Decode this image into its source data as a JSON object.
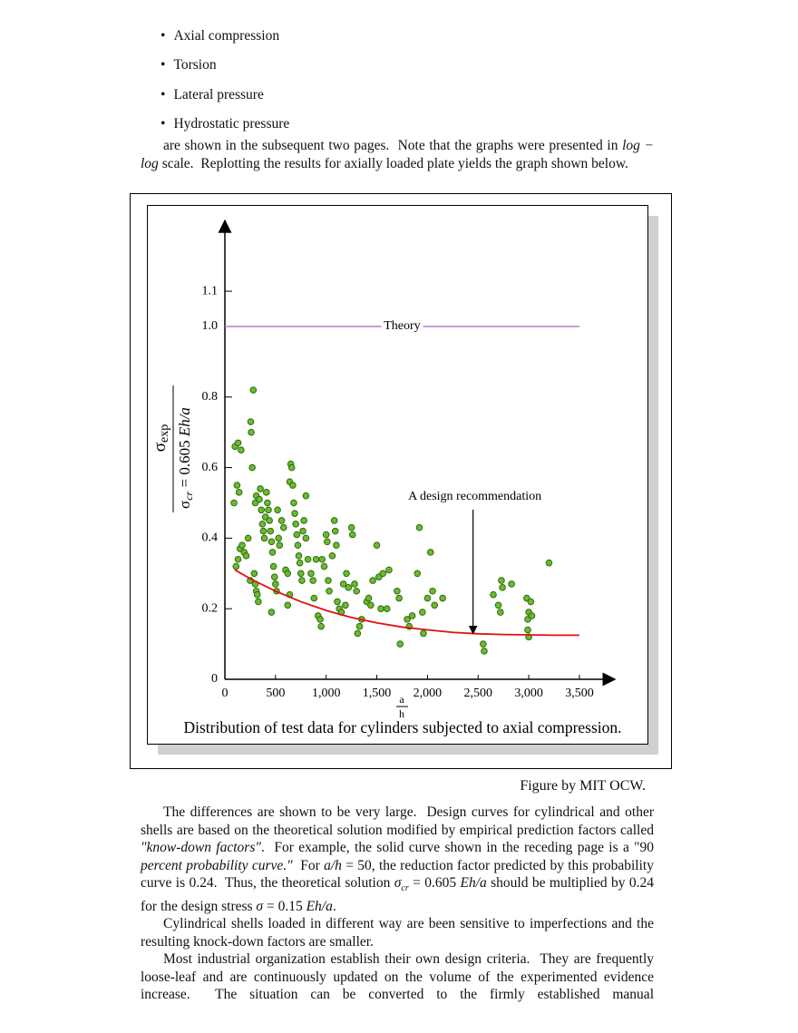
{
  "bullets": [
    "Axial compression",
    "Torsion",
    "Lateral pressure",
    "Hydrostatic pressure"
  ],
  "intro": [
    "are shown in the subsequent two pages.  Note that the graphs were presented in ",
    {
      "em": "log − log"
    },
    " scale.  Replotting the results for axially loaded plate yields the graph shown below."
  ],
  "chart_data": {
    "type": "scatter",
    "caption": "Distribution of test data for cylinders subjected to axial compression.",
    "credit": "Figure by MIT OCW.",
    "x_label": {
      "numerator": "a",
      "denominator": "h"
    },
    "y_label": {
      "numerator": {
        "symbol": "σ",
        "sub": "exp"
      },
      "denominator": {
        "symbol": "σ",
        "sub": "cr",
        "rest": " = 0.605 ",
        "em": "Eh/a"
      }
    },
    "xlim": [
      0,
      3850
    ],
    "ylim": [
      0,
      1.3
    ],
    "xticks": [
      0,
      500,
      {
        "value": 1000,
        "label": "1,000"
      },
      {
        "value": 1500,
        "label": "1,500"
      },
      {
        "value": 2000,
        "label": "2,000"
      },
      {
        "value": 2500,
        "label": "2,500"
      },
      {
        "value": 3000,
        "label": "3,000"
      },
      {
        "value": 3500,
        "label": "3,500"
      }
    ],
    "yticks": [
      0,
      0.2,
      0.4,
      0.6,
      0.8,
      {
        "value": 1,
        "label": "1.0"
      },
      1.1
    ],
    "theory": {
      "value": 1,
      "label": "Theory",
      "color": "#b57ad6",
      "x": [
        0,
        3500
      ]
    },
    "annotation": {
      "text": "A design recommendation",
      "x": 2450,
      "y": 0.13
    },
    "curve": {
      "color": "#e01010",
      "x": [
        100,
        250,
        500,
        750,
        1000,
        1250,
        1500,
        1750,
        2000,
        2250,
        2500,
        2750,
        3000,
        3250,
        3500
      ],
      "y": [
        0.31,
        0.285,
        0.25,
        0.22,
        0.195,
        0.175,
        0.16,
        0.148,
        0.14,
        0.133,
        0.129,
        0.127,
        0.126,
        0.125,
        0.125
      ]
    },
    "points": {
      "color": "#6cbb2e",
      "x": [
        100,
        130,
        160,
        90,
        120,
        140,
        110,
        130,
        150,
        170,
        190,
        210,
        230,
        250,
        270,
        260,
        255,
        280,
        300,
        310,
        290,
        300,
        310,
        320,
        330,
        340,
        350,
        360,
        370,
        380,
        390,
        400,
        410,
        420,
        430,
        440,
        450,
        460,
        470,
        480,
        490,
        500,
        510,
        460,
        520,
        530,
        540,
        560,
        580,
        600,
        620,
        640,
        650,
        660,
        670,
        680,
        690,
        700,
        710,
        720,
        730,
        740,
        750,
        760,
        640,
        620,
        800,
        780,
        770,
        800,
        820,
        850,
        870,
        880,
        900,
        920,
        940,
        950,
        960,
        980,
        1000,
        1010,
        1020,
        1030,
        1060,
        1080,
        1090,
        1100,
        1110,
        1130,
        1150,
        1170,
        1190,
        1200,
        1220,
        1250,
        1260,
        1280,
        1300,
        1310,
        1330,
        1350,
        1400,
        1420,
        1440,
        1460,
        1500,
        1520,
        1540,
        1560,
        1600,
        1620,
        1700,
        1720,
        1730,
        1800,
        1820,
        1850,
        1900,
        1920,
        1950,
        1960,
        2000,
        2030,
        2050,
        2070,
        2150,
        2550,
        2560,
        2650,
        2700,
        2720,
        2730,
        2740,
        2830,
        2980,
        3000,
        2990,
        2990,
        3000,
        3020,
        3030,
        3200
      ],
      "y": [
        0.66,
        0.67,
        0.65,
        0.5,
        0.55,
        0.53,
        0.32,
        0.34,
        0.37,
        0.38,
        0.36,
        0.35,
        0.4,
        0.28,
        0.6,
        0.7,
        0.73,
        0.82,
        0.5,
        0.52,
        0.3,
        0.27,
        0.25,
        0.24,
        0.22,
        0.51,
        0.54,
        0.48,
        0.44,
        0.42,
        0.4,
        0.46,
        0.53,
        0.5,
        0.48,
        0.45,
        0.42,
        0.39,
        0.36,
        0.32,
        0.29,
        0.27,
        0.25,
        0.19,
        0.48,
        0.4,
        0.38,
        0.45,
        0.43,
        0.31,
        0.3,
        0.56,
        0.61,
        0.6,
        0.55,
        0.5,
        0.47,
        0.44,
        0.41,
        0.38,
        0.35,
        0.33,
        0.3,
        0.28,
        0.24,
        0.21,
        0.52,
        0.45,
        0.42,
        0.4,
        0.34,
        0.3,
        0.28,
        0.23,
        0.34,
        0.18,
        0.17,
        0.15,
        0.34,
        0.32,
        0.41,
        0.39,
        0.28,
        0.25,
        0.35,
        0.45,
        0.42,
        0.38,
        0.22,
        0.2,
        0.19,
        0.27,
        0.21,
        0.3,
        0.26,
        0.43,
        0.41,
        0.27,
        0.25,
        0.13,
        0.15,
        0.17,
        0.22,
        0.23,
        0.21,
        0.28,
        0.38,
        0.29,
        0.2,
        0.3,
        0.2,
        0.31,
        0.25,
        0.23,
        0.1,
        0.17,
        0.15,
        0.18,
        0.3,
        0.43,
        0.19,
        0.13,
        0.23,
        0.36,
        0.25,
        0.21,
        0.23,
        0.1,
        0.08,
        0.24,
        0.21,
        0.19,
        0.28,
        0.26,
        0.27,
        0.23,
        0.19,
        0.17,
        0.14,
        0.12,
        0.22,
        0.18,
        0.33
      ]
    }
  },
  "paragraphs": [
    [
      "The differences are shown to be very large.  Design curves for cylindrical and other shells are based on the theoretical solution modified by empirical prediction factors called ",
      {
        "em": "\"know-down factors\""
      },
      ".  For example, the solid curve shown in the receding page is a \"90 ",
      {
        "em": "percent probability curve.\""
      },
      "  For ",
      {
        "em": "a/h"
      },
      " = 50, the reduction factor predicted by this probability curve is 0.24.  Thus, the theoretical solution ",
      {
        "em": "σ"
      },
      {
        "sub": "cr"
      },
      " = 0.605 ",
      {
        "em": "Eh/a"
      },
      " should be multiplied by 0.24 for the design stress ",
      {
        "em": "σ"
      },
      " = 0.15 ",
      {
        "em": "Eh/a"
      },
      "."
    ],
    [
      "Cylindrical shells loaded in different way are been sensitive to imperfections and the resulting knock-down factors are smaller."
    ],
    [
      "Most industrial organization establish their own design criteria.  They are frequently loose-leaf and are continuously updated on the volume of the experimented evidence increase.  The situation can be converted to the firmly established manual"
    ]
  ]
}
